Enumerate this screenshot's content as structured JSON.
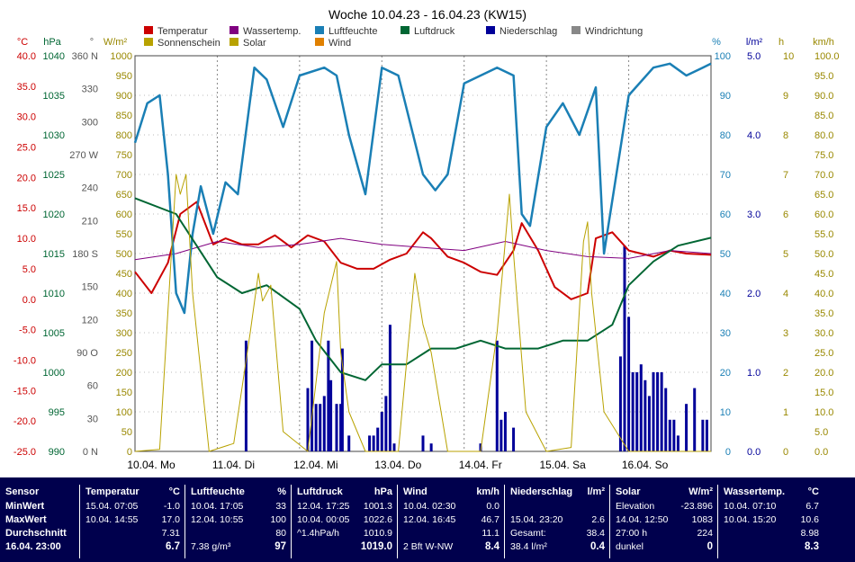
{
  "chart_data": {
    "type": "line",
    "title": "Woche 10.04.23 - 16.04.23 (KW15)",
    "x_labels": [
      "10.04.  Mo",
      "11.04.  Di",
      "12.04.  Mi",
      "13.04.  Do",
      "14.04.  Fr",
      "15.04.  Sa",
      "16.04.  So"
    ],
    "axes": [
      {
        "unit": "°C",
        "color": "#cc0000",
        "ticks": [
          "40.0",
          "35.0",
          "30.0",
          "25.0",
          "20.0",
          "15.0",
          "10.0",
          "5.0",
          "0.0",
          "-5.0",
          "-10.0",
          "-15.0",
          "-20.0",
          "-25.0"
        ]
      },
      {
        "unit": "hPa",
        "color": "#006633",
        "ticks": [
          "1040",
          "1035",
          "1030",
          "1025",
          "1020",
          "1015",
          "1010",
          "1005",
          "1000",
          "995",
          "990"
        ]
      },
      {
        "unit": "°",
        "color": "#555555",
        "ticks": [
          "360 N",
          "330",
          "300",
          "270 W",
          "240",
          "210",
          "180 S",
          "150",
          "120",
          "90 O",
          "60",
          "30",
          "0 N"
        ]
      },
      {
        "unit": "W/m²",
        "color": "#998800",
        "ticks": [
          "1000",
          "950",
          "900",
          "850",
          "800",
          "750",
          "700",
          "650",
          "600",
          "550",
          "500",
          "450",
          "400",
          "350",
          "300",
          "250",
          "200",
          "150",
          "100",
          "50",
          "0"
        ]
      },
      {
        "unit": "%",
        "color": "#1a7fb5",
        "ticks": [
          "100",
          "90",
          "80",
          "70",
          "60",
          "50",
          "40",
          "30",
          "20",
          "10",
          "0"
        ]
      },
      {
        "unit": "l/m²",
        "color": "#000099",
        "ticks": [
          "5.0",
          "4.0",
          "3.0",
          "2.0",
          "1.0",
          "0.0"
        ]
      },
      {
        "unit": "h",
        "color": "#998800",
        "ticks": [
          "10",
          "9",
          "8",
          "7",
          "6",
          "5",
          "4",
          "3",
          "2",
          "1",
          "0"
        ]
      },
      {
        "unit": "km/h",
        "color": "#998800",
        "ticks": [
          "100.0",
          "95.0",
          "90.0",
          "85.0",
          "80.0",
          "75.0",
          "70.0",
          "65.0",
          "60.0",
          "55.0",
          "50.0",
          "45.0",
          "40.0",
          "35.0",
          "30.0",
          "25.0",
          "20.0",
          "15.0",
          "10.0",
          "5.0",
          "0.0"
        ]
      }
    ],
    "legend": [
      {
        "name": "Temperatur",
        "color": "#cc0000"
      },
      {
        "name": "Wassertemp.",
        "color": "#800080"
      },
      {
        "name": "Luftfeuchte",
        "color": "#1a7fb5"
      },
      {
        "name": "Luftdruck",
        "color": "#006633"
      },
      {
        "name": "Niederschlag",
        "color": "#000099"
      },
      {
        "name": "Windrichtung",
        "color": "#888888"
      },
      {
        "name": "Sonnenschein",
        "color": "#b8a200"
      },
      {
        "name": "Solar",
        "color": "#b8a200"
      },
      {
        "name": "Wind",
        "color": "#e08000"
      }
    ],
    "series": [
      {
        "name": "Temperatur",
        "unit": "°C",
        "x_day": [
          0,
          0.2,
          0.4,
          0.55,
          0.75,
          0.95,
          1.1,
          1.3,
          1.5,
          1.7,
          1.9,
          2.1,
          2.3,
          2.5,
          2.7,
          2.9,
          3.1,
          3.3,
          3.5,
          3.6,
          3.8,
          4.0,
          4.2,
          4.4,
          4.6,
          4.7,
          4.9,
          5.1,
          5.3,
          5.5,
          5.6,
          5.8,
          6.0,
          6.3,
          6.5,
          6.7,
          7.0
        ],
        "values": [
          4.5,
          1,
          6,
          14,
          16,
          9,
          10,
          9,
          9,
          10.5,
          8.5,
          10.5,
          9.5,
          6,
          5,
          5,
          6.5,
          7.5,
          11,
          10,
          7,
          6,
          4.5,
          4,
          8,
          12.5,
          8,
          2,
          0,
          1,
          10,
          11,
          8,
          7,
          8,
          7.5,
          7.3
        ]
      },
      {
        "name": "Wassertemp.",
        "unit": "°C",
        "x_day": [
          0,
          0.5,
          1,
          1.5,
          2,
          2.5,
          3,
          3.5,
          4,
          4.5,
          5,
          5.5,
          6,
          6.5,
          7
        ],
        "values": [
          6.5,
          7.5,
          9.5,
          8.5,
          9,
          10,
          9,
          8.5,
          8,
          9.5,
          8,
          7,
          6.7,
          8,
          7.5
        ]
      },
      {
        "name": "Luftfeuchte",
        "unit": "%",
        "x_day": [
          0,
          0.15,
          0.3,
          0.4,
          0.5,
          0.6,
          0.7,
          0.8,
          0.95,
          1.1,
          1.25,
          1.45,
          1.6,
          1.8,
          2.0,
          2.3,
          2.45,
          2.6,
          2.8,
          3.0,
          3.2,
          3.5,
          3.65,
          3.8,
          4.0,
          4.2,
          4.4,
          4.6,
          4.7,
          4.8,
          5.0,
          5.2,
          5.4,
          5.6,
          5.7,
          6.0,
          6.3,
          6.5,
          6.7,
          6.9,
          7.0
        ],
        "values": [
          78,
          88,
          90,
          70,
          40,
          35,
          55,
          67,
          55,
          68,
          65,
          97,
          94,
          82,
          95,
          97,
          95,
          80,
          65,
          97,
          95,
          70,
          66,
          70,
          93,
          95,
          97,
          95,
          60,
          57,
          82,
          88,
          80,
          92,
          50,
          90,
          97,
          98,
          95,
          97,
          98
        ]
      },
      {
        "name": "Luftdruck",
        "unit": "hPa",
        "x_day": [
          0,
          0.5,
          1,
          1.3,
          1.6,
          2,
          2.2,
          2.5,
          2.8,
          3,
          3.3,
          3.6,
          3.9,
          4.2,
          4.5,
          4.9,
          5.2,
          5.5,
          5.8,
          6.0,
          6.3,
          6.6,
          7.0
        ],
        "values": [
          1022,
          1020,
          1012,
          1010,
          1011,
          1008,
          1004,
          1000,
          999,
          1001,
          1001,
          1003,
          1003,
          1004,
          1003,
          1003,
          1004,
          1004,
          1006,
          1011,
          1014,
          1016,
          1017
        ]
      },
      {
        "name": "Solar",
        "unit": "W/m²",
        "x_day": [
          0,
          0.3,
          0.5,
          0.55,
          0.62,
          0.7,
          0.9,
          1.2,
          1.4,
          1.5,
          1.55,
          1.65,
          1.8,
          2.1,
          2.3,
          2.45,
          2.5,
          2.6,
          2.8,
          3.2,
          3.4,
          3.5,
          3.6,
          3.8,
          4.2,
          4.4,
          4.5,
          4.55,
          4.6,
          4.75,
          5.0,
          5.3,
          5.45,
          5.5,
          5.55,
          5.7,
          6.0,
          7.0
        ],
        "values": [
          0,
          5,
          700,
          650,
          700,
          400,
          0,
          20,
          300,
          450,
          380,
          420,
          50,
          0,
          350,
          480,
          250,
          100,
          0,
          0,
          450,
          320,
          250,
          0,
          0,
          300,
          530,
          650,
          500,
          100,
          0,
          10,
          530,
          580,
          400,
          100,
          0,
          0
        ]
      },
      {
        "name": "Niederschlag",
        "unit": "l/m²",
        "x_day": [
          1.35,
          2.1,
          2.15,
          2.2,
          2.25,
          2.3,
          2.35,
          2.38,
          2.45,
          2.5,
          2.52,
          2.6,
          2.85,
          2.9,
          2.95,
          3.0,
          3.05,
          3.1,
          3.15,
          3.5,
          3.6,
          4.2,
          4.4,
          4.45,
          4.5,
          4.6,
          5.9,
          5.95,
          6.0,
          6.05,
          6.1,
          6.15,
          6.2,
          6.25,
          6.3,
          6.35,
          6.4,
          6.45,
          6.5,
          6.55,
          6.6,
          6.7,
          6.8,
          6.9,
          6.95
        ],
        "values": [
          1.4,
          0.8,
          1.4,
          0.6,
          0.6,
          0.7,
          1.4,
          0.9,
          0.6,
          0.6,
          1.3,
          0.2,
          0.2,
          0.2,
          0.3,
          0.5,
          0.7,
          1.6,
          0.1,
          0.2,
          0.1,
          0.1,
          1.4,
          0.4,
          0.5,
          0.3,
          1.2,
          2.6,
          1.7,
          1.0,
          1.0,
          1.1,
          0.9,
          0.7,
          1.0,
          1.0,
          1.0,
          0.8,
          0.4,
          0.4,
          0.2,
          0.6,
          0.8,
          0.4,
          0.4
        ]
      }
    ]
  },
  "stats": {
    "columns": [
      {
        "header": "Sensor",
        "unit": "",
        "rows": [
          {
            "l": "MinWert",
            "r": ""
          },
          {
            "l": "MaxWert",
            "r": ""
          },
          {
            "l": "Durchschnitt",
            "r": ""
          },
          {
            "l": "16.04.  23:00",
            "r": ""
          }
        ]
      },
      {
        "header": "Temperatur",
        "unit": "°C",
        "rows": [
          {
            "l": "15.04.  07:05",
            "r": "-1.0"
          },
          {
            "l": "10.04.  14:55",
            "r": "17.0"
          },
          {
            "l": "",
            "r": "7.31"
          },
          {
            "l": "",
            "r": "6.7"
          }
        ]
      },
      {
        "header": "Luftfeuchte",
        "unit": "%",
        "rows": [
          {
            "l": "10.04.  17:05",
            "r": "33"
          },
          {
            "l": "12.04.  10:55",
            "r": "100"
          },
          {
            "l": "",
            "r": "80"
          },
          {
            "l": "7.38 g/m³",
            "r": "97"
          }
        ]
      },
      {
        "header": "Luftdruck",
        "unit": "hPa",
        "rows": [
          {
            "l": "12.04.  17:25",
            "r": "1001.3"
          },
          {
            "l": "10.04.  00:05",
            "r": "1022.6"
          },
          {
            "l": "^1.4hPa/h",
            "r": "1010.9"
          },
          {
            "l": "",
            "r": "1019.0"
          }
        ]
      },
      {
        "header": "Wind",
        "unit": "km/h",
        "rows": [
          {
            "l": "10.04.  02:30",
            "r": "0.0"
          },
          {
            "l": "12.04.  16:45",
            "r": "46.7"
          },
          {
            "l": "",
            "r": "11.1"
          },
          {
            "l": "2 Bft W-NW",
            "r": "8.4"
          }
        ]
      },
      {
        "header": "Niederschlag",
        "unit": "l/m²",
        "rows": [
          {
            "l": "",
            "r": ""
          },
          {
            "l": "15.04.  23:20",
            "r": "2.6"
          },
          {
            "l": "Gesamt:",
            "r": "38.4"
          },
          {
            "l": "38.4 l/m²",
            "r": "0.4"
          }
        ]
      },
      {
        "header": "Solar",
        "unit": "W/m²",
        "rows": [
          {
            "l": "Elevation",
            "r": "-23.896"
          },
          {
            "l": "14.04.  12:50",
            "r": "1083"
          },
          {
            "l": "27:00 h",
            "r": "224"
          },
          {
            "l": "dunkel",
            "r": "0"
          }
        ]
      },
      {
        "header": "Wassertemp.",
        "unit": "°C",
        "rows": [
          {
            "l": "10.04.  07:10",
            "r": "6.7"
          },
          {
            "l": "10.04.  15:20",
            "r": "10.6"
          },
          {
            "l": "",
            "r": "8.98"
          },
          {
            "l": "",
            "r": "8.3"
          }
        ]
      }
    ]
  }
}
